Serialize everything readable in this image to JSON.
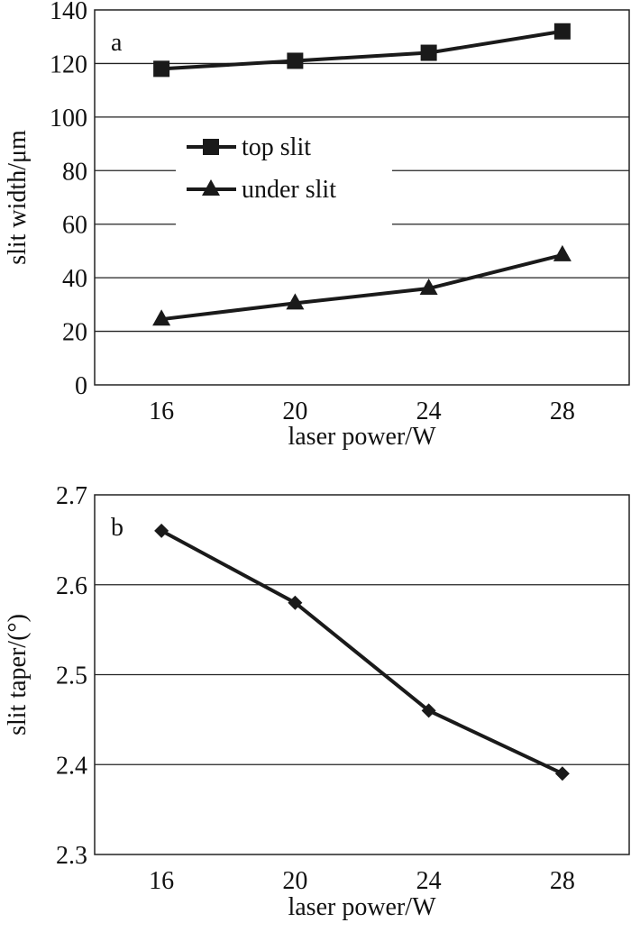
{
  "chart_data": [
    {
      "type": "line",
      "panel_label": "a",
      "xlabel": "laser power/W",
      "ylabel": "slit width/μm",
      "x": [
        16,
        20,
        24,
        28
      ],
      "xticks": [
        "16",
        "20",
        "24",
        "28"
      ],
      "xlim": [
        14,
        30
      ],
      "ylim": [
        0,
        140
      ],
      "yticks": [
        "0",
        "20",
        "40",
        "60",
        "80",
        "100",
        "120",
        "140"
      ],
      "grid": "horizontal",
      "legend_position": "upper-left",
      "series": [
        {
          "name": "top slit",
          "marker": "square",
          "values": [
            118,
            121,
            124,
            132
          ]
        },
        {
          "name": "under slit",
          "marker": "triangle",
          "values": [
            24.5,
            30.5,
            36,
            48.5
          ]
        }
      ],
      "colors": {
        "line": "#1a1a1a"
      }
    },
    {
      "type": "line",
      "panel_label": "b",
      "xlabel": "laser power/W",
      "ylabel": "slit taper/(°)",
      "x": [
        16,
        20,
        24,
        28
      ],
      "xticks": [
        "16",
        "20",
        "24",
        "28"
      ],
      "xlim": [
        14,
        30
      ],
      "ylim": [
        2.3,
        2.7
      ],
      "yticks": [
        "2.3",
        "2.4",
        "2.5",
        "2.6",
        "2.7"
      ],
      "grid": "horizontal",
      "series": [
        {
          "marker": "diamond",
          "values": [
            2.66,
            2.58,
            2.46,
            2.39
          ]
        }
      ],
      "colors": {
        "line": "#1a1a1a"
      }
    }
  ]
}
